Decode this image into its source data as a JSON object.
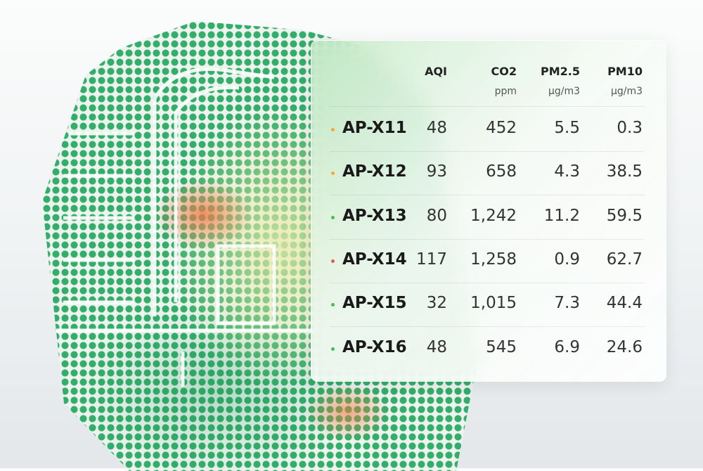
{
  "table": {
    "headers": [
      {
        "label": "AQI",
        "unit": ""
      },
      {
        "label": "CO2",
        "unit": "ppm"
      },
      {
        "label": "PM2.5",
        "unit": "µg/m3"
      },
      {
        "label": "PM10",
        "unit": "µg/m3"
      }
    ],
    "rows": [
      {
        "name": "AP-X11",
        "status": "#f2a93b",
        "aqi": "48",
        "co2": "452",
        "pm25": "5.5",
        "pm10": "0.3"
      },
      {
        "name": "AP-X12",
        "status": "#f2a93b",
        "aqi": "93",
        "co2": "658",
        "pm25": "4.3",
        "pm10": "38.5"
      },
      {
        "name": "AP-X13",
        "status": "#4cba5a",
        "aqi": "80",
        "co2": "1,242",
        "pm25": "11.2",
        "pm10": "59.5"
      },
      {
        "name": "AP-X14",
        "status": "#e8584a",
        "aqi": "117",
        "co2": "1,258",
        "pm25": "0.9",
        "pm10": "62.7"
      },
      {
        "name": "AP-X15",
        "status": "#4cba5a",
        "aqi": "32",
        "co2": "1,015",
        "pm25": "7.3",
        "pm10": "44.4"
      },
      {
        "name": "AP-X16",
        "status": "#4cba5a",
        "aqi": "48",
        "co2": "545",
        "pm25": "6.9",
        "pm10": "24.6"
      }
    ]
  }
}
